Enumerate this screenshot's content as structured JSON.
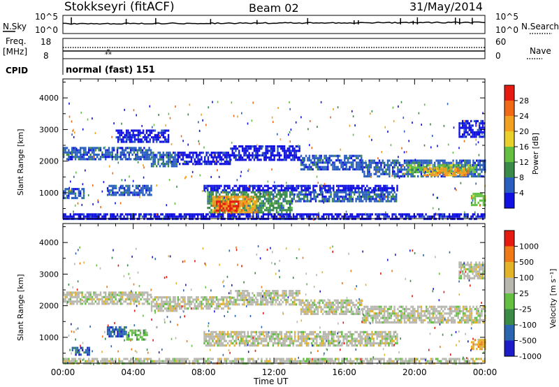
{
  "header": {
    "station": "Stokkseyri (fitACF)",
    "beam": "Beam 02",
    "date": "31/May/2014"
  },
  "panel_labels": {
    "nsky": "N.Sky",
    "nsearch": "N.Search",
    "freq": "Freq.",
    "freq_unit": "[MHz]",
    "nave": "Nave",
    "cpid": "CPID",
    "cpid_value": "normal (fast) 151"
  },
  "noise_axis": {
    "left_ticks": [
      "10^5",
      "10^0"
    ],
    "right_ticks": [
      "10^5",
      "10^0"
    ]
  },
  "freq_axis": {
    "left_ticks": [
      "18",
      "8"
    ],
    "right_ticks": [
      "60",
      "0"
    ]
  },
  "colors": {
    "power_scale": [
      "#1010e0",
      "#2a5fc0",
      "#3a8a4a",
      "#63c043",
      "#e9d02a",
      "#f2a020",
      "#f06a15",
      "#e51a10"
    ],
    "velocity_scale": [
      "#1c1cc8",
      "#2a66b0",
      "#3b8a45",
      "#63c043",
      "#b8b8b0",
      "#e4b428",
      "#f07a18",
      "#e51a10"
    ],
    "ground_scatter": "#b8b8b0"
  },
  "chart_data": [
    {
      "type": "heatmap",
      "name": "power",
      "ylabel": "Slant Range [km]",
      "xlabel": "Time UT",
      "xtick_labels": [
        "00:00",
        "04:00",
        "08:00",
        "12:00",
        "16:00",
        "20:00",
        "00:00"
      ],
      "x_hours": [
        0,
        4,
        8,
        12,
        16,
        20,
        24
      ],
      "ylim": [
        180,
        4600
      ],
      "yticks": [
        1000,
        2000,
        3000,
        4000
      ],
      "colorbar_label": "Power [dB]",
      "colorbar_ticks": [
        "28",
        "24",
        "20",
        "16",
        "12",
        "8",
        "4"
      ],
      "regions": [
        {
          "t0": 0.0,
          "t1": 5.0,
          "r0": 2050,
          "r1": 2450,
          "level": 1
        },
        {
          "t0": 5.0,
          "t1": 6.5,
          "r0": 1850,
          "r1": 2300,
          "level": 1
        },
        {
          "t0": 6.5,
          "t1": 9.5,
          "r0": 1900,
          "r1": 2300,
          "level": 0
        },
        {
          "t0": 9.5,
          "t1": 13.5,
          "r0": 2050,
          "r1": 2500,
          "level": 0
        },
        {
          "t0": 13.5,
          "t1": 17.0,
          "r0": 1750,
          "r1": 2200,
          "level": 1
        },
        {
          "t0": 17.0,
          "t1": 24.0,
          "r0": 1550,
          "r1": 2050,
          "level": 1
        },
        {
          "t0": 19.5,
          "t1": 23.5,
          "r0": 1650,
          "r1": 1900,
          "level": 3
        },
        {
          "t0": 20.5,
          "t1": 23.0,
          "r0": 1550,
          "r1": 1800,
          "level": 5
        },
        {
          "t0": 0.0,
          "t1": 1.2,
          "r0": 800,
          "r1": 1150,
          "level": 1
        },
        {
          "t0": 2.5,
          "t1": 5.0,
          "r0": 900,
          "r1": 1250,
          "level": 1
        },
        {
          "t0": 8.0,
          "t1": 19.0,
          "r0": 1050,
          "r1": 1250,
          "level": 0
        },
        {
          "t0": 8.2,
          "t1": 13.0,
          "r0": 350,
          "r1": 1050,
          "level": 2
        },
        {
          "t0": 8.5,
          "t1": 11.0,
          "r0": 350,
          "r1": 900,
          "level": 5
        },
        {
          "t0": 8.7,
          "t1": 10.0,
          "r0": 400,
          "r1": 750,
          "level": 7
        },
        {
          "t0": 13.0,
          "t1": 19.0,
          "r0": 700,
          "r1": 1050,
          "level": 1
        },
        {
          "t0": 23.2,
          "t1": 24.0,
          "r0": 600,
          "r1": 1000,
          "level": 3
        },
        {
          "t0": 0.0,
          "t1": 24.0,
          "r0": 200,
          "r1": 350,
          "level": 0
        },
        {
          "t0": 22.5,
          "t1": 24.0,
          "r0": 2800,
          "r1": 3300,
          "level": 0
        },
        {
          "t0": 3.0,
          "t1": 6.0,
          "r0": 2600,
          "r1": 3000,
          "level": 0
        }
      ]
    },
    {
      "type": "heatmap",
      "name": "velocity",
      "ylabel": "Slant Range [km]",
      "xlabel": "Time UT",
      "xtick_labels": [
        "00:00",
        "04:00",
        "08:00",
        "12:00",
        "16:00",
        "20:00",
        "00:00"
      ],
      "x_hours": [
        0,
        4,
        8,
        12,
        16,
        20,
        24
      ],
      "ylim": [
        180,
        4600
      ],
      "yticks": [
        1000,
        2000,
        3000,
        4000
      ],
      "colorbar_label": "Velocity [m s⁻¹]",
      "colorbar_ticks": [
        "1000",
        "500",
        "100",
        "25",
        "-25",
        "-100",
        "-500",
        "-1000"
      ],
      "regions": [
        {
          "t0": 0.0,
          "t1": 5.0,
          "r0": 2050,
          "r1": 2450,
          "level": 4
        },
        {
          "t0": 5.0,
          "t1": 6.5,
          "r0": 1850,
          "r1": 2300,
          "level": 4
        },
        {
          "t0": 6.5,
          "t1": 9.5,
          "r0": 1900,
          "r1": 2300,
          "level": 4
        },
        {
          "t0": 9.5,
          "t1": 13.5,
          "r0": 2050,
          "r1": 2500,
          "level": 4
        },
        {
          "t0": 13.5,
          "t1": 17.0,
          "r0": 1750,
          "r1": 2200,
          "level": 4
        },
        {
          "t0": 17.0,
          "t1": 24.0,
          "r0": 1450,
          "r1": 2000,
          "level": 4
        },
        {
          "t0": 8.0,
          "t1": 19.0,
          "r0": 750,
          "r1": 1200,
          "level": 4
        },
        {
          "t0": 2.5,
          "t1": 3.6,
          "r0": 1000,
          "r1": 1350,
          "level": 1
        },
        {
          "t0": 3.6,
          "t1": 4.8,
          "r0": 900,
          "r1": 1250,
          "level": 3
        },
        {
          "t0": 0.5,
          "t1": 1.5,
          "r0": 450,
          "r1": 700,
          "level": 1
        },
        {
          "t0": 23.2,
          "t1": 24.0,
          "r0": 600,
          "r1": 950,
          "level": 5
        },
        {
          "t0": 22.5,
          "t1": 24.0,
          "r0": 2900,
          "r1": 3400,
          "level": 4
        },
        {
          "t0": 0.0,
          "t1": 24.0,
          "r0": 200,
          "r1": 350,
          "level": 4
        }
      ]
    }
  ]
}
